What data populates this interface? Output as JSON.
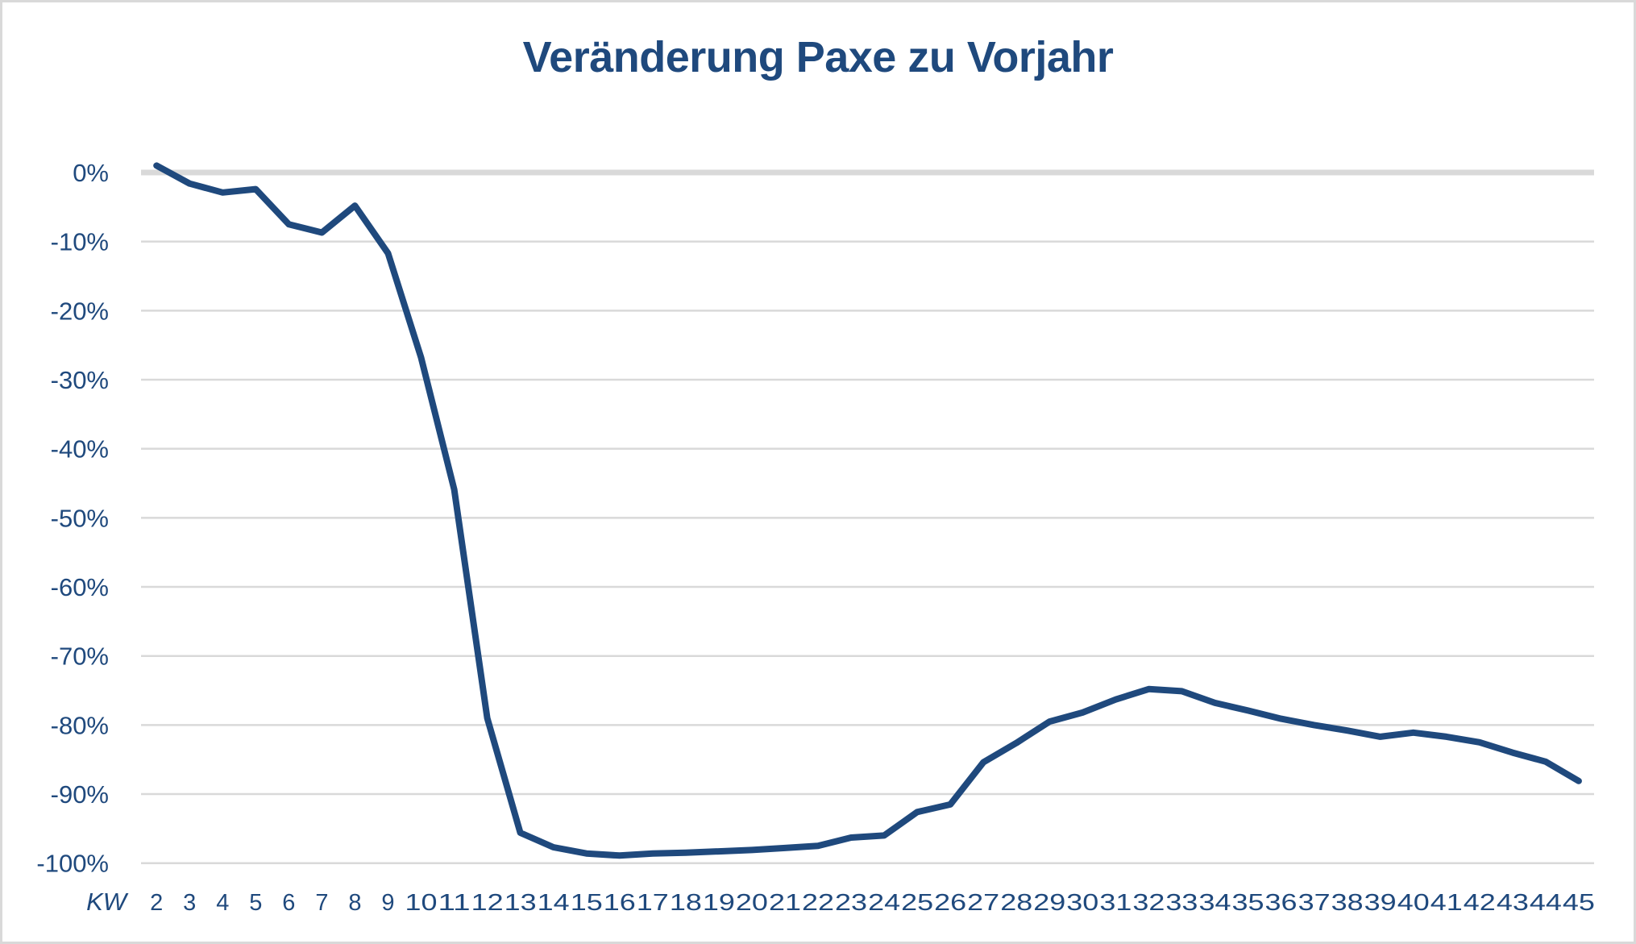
{
  "chart_data": {
    "type": "line",
    "title": "Veränderung Paxe zu Vorjahr",
    "xlabel": "KW",
    "ylabel": "",
    "ylim": [
      -100,
      0
    ],
    "y_ticks": [
      "0%",
      "-10%",
      "-20%",
      "-30%",
      "-40%",
      "-50%",
      "-60%",
      "-70%",
      "-80%",
      "-90%",
      "-100%"
    ],
    "y_tick_values": [
      0,
      -10,
      -20,
      -30,
      -40,
      -50,
      -60,
      -70,
      -80,
      -90,
      -100
    ],
    "grid": true,
    "legend": null,
    "categories": [
      "2",
      "3",
      "4",
      "5",
      "6",
      "7",
      "8",
      "9",
      "10",
      "11",
      "12",
      "13",
      "14",
      "15",
      "16",
      "17",
      "18",
      "19",
      "20",
      "21",
      "22",
      "23",
      "24",
      "25",
      "26",
      "27",
      "28",
      "29",
      "30",
      "31",
      "32",
      "33",
      "34",
      "35",
      "36",
      "37",
      "38",
      "39",
      "40",
      "41",
      "42",
      "43",
      "44",
      "45"
    ],
    "series": [
      {
        "name": "Veränderung Paxe zu Vorjahr",
        "color": "#1f497d",
        "values": [
          1.0,
          -1.6,
          -2.9,
          -2.4,
          -7.5,
          -8.7,
          -4.8,
          -11.7,
          -26.8,
          -45.9,
          -79.0,
          -95.6,
          -97.7,
          -98.6,
          -98.9,
          -98.6,
          -98.5,
          -98.3,
          -98.1,
          -97.8,
          -97.5,
          -96.3,
          -96.0,
          -92.6,
          -91.5,
          -85.4,
          -82.6,
          -79.5,
          -78.2,
          -76.3,
          -74.8,
          -75.1,
          -76.8,
          -77.9,
          -79.1,
          -80.0,
          -80.8,
          -81.7,
          -81.1,
          -81.7,
          -82.5,
          -84.0,
          -85.3,
          -88.1
        ]
      }
    ]
  },
  "colors": {
    "text": "#1f497d",
    "line": "#1f497d",
    "grid": "#d9d9d9",
    "zero_line": "#d9d9d9"
  }
}
